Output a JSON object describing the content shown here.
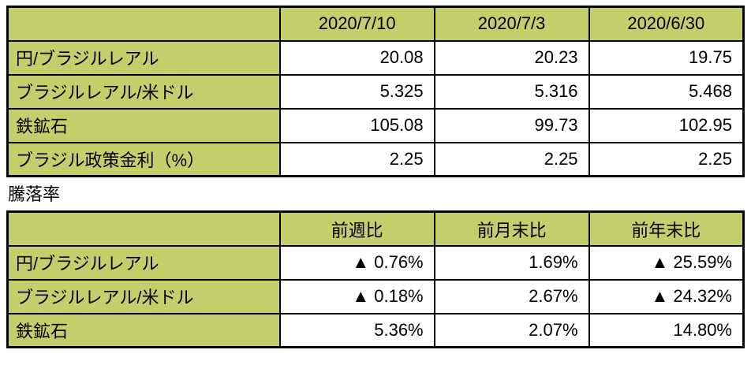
{
  "section_label": "騰落率",
  "colors": {
    "header_bg": "#c4cf6b",
    "border": "#000000",
    "text": "#000000",
    "background": "#ffffff"
  },
  "chart_data": [
    {
      "type": "table",
      "title": "",
      "columns": [
        "",
        "2020/7/10",
        "2020/7/3",
        "2020/6/30"
      ],
      "rows": [
        [
          "円/ブラジルレアル",
          20.08,
          20.23,
          19.75
        ],
        [
          "ブラジルレアル/米ドル",
          5.325,
          5.316,
          5.468
        ],
        [
          "鉄鉱石",
          105.08,
          99.73,
          102.95
        ],
        [
          "ブラジル政策金利（%）",
          2.25,
          2.25,
          2.25
        ]
      ]
    },
    {
      "type": "table",
      "title": "騰落率",
      "columns": [
        "",
        "前週比",
        "前月末比",
        "前年末比"
      ],
      "rows": [
        [
          "円/ブラジルレアル",
          "▲ 0.76%",
          "1.69%",
          "▲ 25.59%"
        ],
        [
          "ブラジルレアル/米ドル",
          "▲ 0.18%",
          "2.67%",
          "▲ 24.32%"
        ],
        [
          "鉄鉱石",
          "5.36%",
          "2.07%",
          "14.80%"
        ]
      ]
    }
  ]
}
